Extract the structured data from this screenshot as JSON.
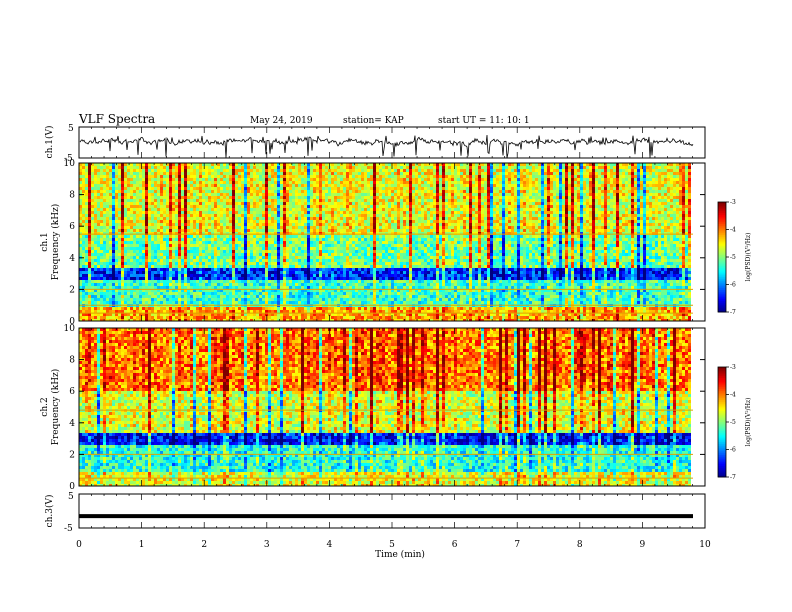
{
  "header": {
    "title": "VLF Spectra",
    "date": "May 24, 2019",
    "station": "station= KAP",
    "start_ut": "start  UT =   11: 10: 1"
  },
  "chart_data": [
    {
      "type": "line",
      "id": "ch1-waveform",
      "ylabel": "ch.1(V)",
      "ylim": [
        -5,
        5
      ],
      "yticks": [
        "5",
        "-5"
      ],
      "xlim": [
        0,
        10
      ],
      "description_values": "noisy voltage trace, typically between -1 and 1 V with spikes reaching about -5 V",
      "baseline": 0.2,
      "amplitude": 1.0
    },
    {
      "type": "heatmap",
      "id": "ch1-spectrogram",
      "ylabel_line1": "ch.1",
      "ylabel_line2": "Frequency (kHz)",
      "ylim": [
        0,
        10
      ],
      "yticks": [
        "0",
        "2",
        "4",
        "6",
        "8",
        "10"
      ],
      "xlim": [
        0,
        10
      ],
      "colorbar": {
        "label": "log(PSD)(V²/Hz)",
        "ticks": [
          "-3",
          "-4",
          "-5",
          "-6",
          "-7"
        ],
        "range": [
          -7,
          -3
        ]
      },
      "bands": [
        {
          "f0": 0.0,
          "f1": 0.8,
          "level": -4.2
        },
        {
          "f0": 0.8,
          "f1": 2.6,
          "level": -5.3
        },
        {
          "f0": 2.6,
          "f1": 3.4,
          "level": -6.4
        },
        {
          "f0": 3.4,
          "f1": 5.5,
          "level": -5.1
        },
        {
          "f0": 5.5,
          "f1": 10.0,
          "level": -4.6
        }
      ],
      "horizontal_lines_khz": [
        0.5,
        1.0,
        2.0,
        5.5
      ]
    },
    {
      "type": "heatmap",
      "id": "ch2-spectrogram",
      "ylabel_line1": "ch.2",
      "ylabel_line2": "Frequency (kHz)",
      "ylim": [
        0,
        10
      ],
      "yticks": [
        "0",
        "2",
        "4",
        "6",
        "8",
        "10"
      ],
      "xlim": [
        0,
        10
      ],
      "colorbar": {
        "label": "log(PSD)(V²/Hz)",
        "ticks": [
          "-3",
          "-4",
          "-5",
          "-6",
          "-7"
        ],
        "range": [
          -7,
          -3
        ]
      },
      "bands": [
        {
          "f0": 0.0,
          "f1": 0.8,
          "level": -4.6
        },
        {
          "f0": 0.8,
          "f1": 2.6,
          "level": -5.4
        },
        {
          "f0": 2.6,
          "f1": 3.4,
          "level": -6.5
        },
        {
          "f0": 3.4,
          "f1": 6.0,
          "level": -4.7
        },
        {
          "f0": 6.0,
          "f1": 10.0,
          "level": -4.0
        }
      ],
      "horizontal_lines_khz": [
        0.5,
        2.0,
        4.8
      ]
    },
    {
      "type": "line",
      "id": "ch3-waveform",
      "ylabel": "ch.3(V)",
      "ylim": [
        -5,
        5
      ],
      "yticks": [
        "5",
        "-5"
      ],
      "xlim": [
        0,
        10
      ],
      "constant_value": -1.5
    }
  ],
  "xaxis": {
    "label": "Time  (min)",
    "ticks": [
      "0",
      "1",
      "2",
      "3",
      "4",
      "5",
      "6",
      "7",
      "8",
      "9",
      "10"
    ],
    "range": [
      0,
      10
    ]
  }
}
